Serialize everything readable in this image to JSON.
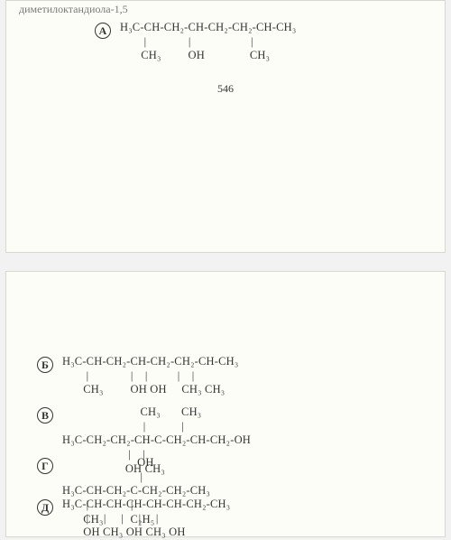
{
  "truncated_header": "диметилоктандиола-1,5",
  "page_number": "546",
  "options": {
    "a": {
      "label": "А",
      "line1": "H₃C-CH-CH₂-CH-CH₂-CH₂-CH-CH₃",
      "line2": "        |              |                    |",
      "line3": "       CH₃         OH               CH₃"
    },
    "b": {
      "label": "Б",
      "line1": "H₃C-CH-CH₂-CH-CH₂-CH₂-CH-CH₃",
      "line2": "        |              |    |          |    |",
      "line3": "       CH₃         OH OH     CH₃ CH₃"
    },
    "v": {
      "label": "В",
      "line1": "                          CH₃       CH₃",
      "line2": "                           |            |",
      "line3": "H₃C-CH₂-CH₂-CH-C-CH₂-CH-CH₂-OH",
      "line4": "                      |    |",
      "line5": "                     OH CH₃"
    },
    "g": {
      "label": "Г",
      "line1": "                         OH",
      "line2": "                          |",
      "line3": "H₃C-CH-CH₂-C-CH₂-CH₂-CH₃",
      "line4": "        |              |",
      "line5": "       CH₃         C₂H₅"
    },
    "d": {
      "label": "Д",
      "line1": "H₃C-CH-CH-CH-CH-CH-CH₂-CH₃",
      "line2": "        |     |     |     |     |",
      "line3": "       OH CH₃ OH CH₃ OH"
    }
  }
}
